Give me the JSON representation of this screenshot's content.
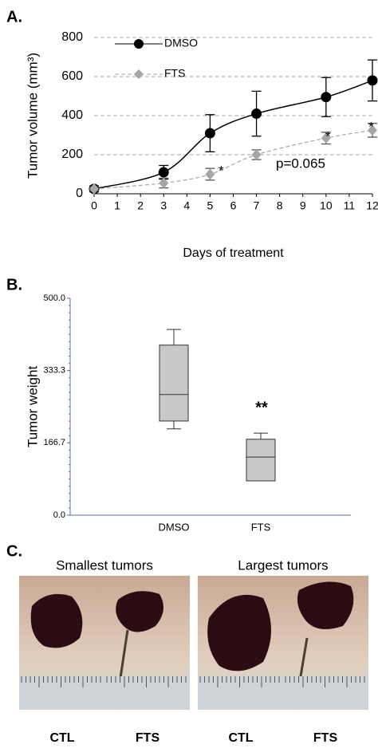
{
  "chart_data": [
    {
      "type": "line",
      "panel_label": "A.",
      "x_label": "Days of treatment",
      "y_label": "Tumor volume (mm³)",
      "x": [
        0,
        3,
        5,
        7,
        10,
        12
      ],
      "series": [
        {
          "name": "DMSO",
          "color": "#000000",
          "values": [
            25,
            110,
            310,
            410,
            495,
            580
          ],
          "errors": [
            15,
            35,
            95,
            115,
            100,
            105
          ]
        },
        {
          "name": "FTS",
          "color": "#a6a6a6",
          "values": [
            25,
            55,
            100,
            200,
            285,
            325
          ],
          "errors": [
            10,
            25,
            30,
            25,
            30,
            35
          ]
        }
      ],
      "xlim": [
        0,
        12
      ],
      "xticks": [
        0,
        1,
        2,
        3,
        4,
        5,
        6,
        7,
        8,
        9,
        10,
        11,
        12
      ],
      "ylim": [
        0,
        800
      ],
      "yticks": [
        0,
        200,
        400,
        600,
        800
      ],
      "grid": true,
      "legend": "upper left",
      "annotations": [
        "*",
        "p=0.065",
        "*",
        "*"
      ]
    },
    {
      "type": "box",
      "panel_label": "B.",
      "y_label": "Tumor weight",
      "categories": [
        "DMSO",
        "FTS"
      ],
      "color": "#c8c8c8",
      "boxes": [
        {
          "min": 199,
          "q1": 217,
          "median": 278,
          "q3": 392,
          "max": 428
        },
        {
          "min": 79,
          "q1": 79,
          "median": 134,
          "q3": 175,
          "max": 189
        }
      ],
      "ylim": [
        0,
        500
      ],
      "yticks": [
        {
          "value": 0,
          "label": "0.0"
        },
        {
          "value": 166.7,
          "label": "166.7"
        },
        {
          "value": 333.3,
          "label": "333.3"
        },
        {
          "value": 500,
          "label": "500.0"
        }
      ],
      "annotations": [
        "**"
      ]
    }
  ],
  "panel_c": {
    "panel_label": "C.",
    "groups": [
      "Smallest tumors",
      "Largest tumors"
    ],
    "labels": [
      "CTL",
      "FTS",
      "CTL",
      "FTS"
    ]
  }
}
